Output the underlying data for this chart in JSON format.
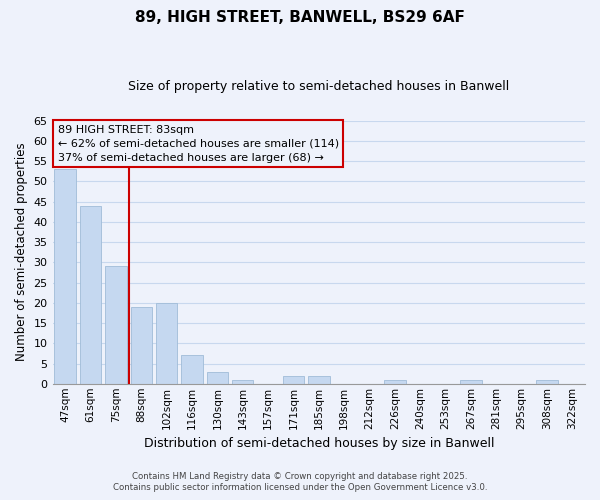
{
  "title": "89, HIGH STREET, BANWELL, BS29 6AF",
  "subtitle": "Size of property relative to semi-detached houses in Banwell",
  "xlabel": "Distribution of semi-detached houses by size in Banwell",
  "ylabel": "Number of semi-detached properties",
  "bin_labels": [
    "47sqm",
    "61sqm",
    "75sqm",
    "88sqm",
    "102sqm",
    "116sqm",
    "130sqm",
    "143sqm",
    "157sqm",
    "171sqm",
    "185sqm",
    "198sqm",
    "212sqm",
    "226sqm",
    "240sqm",
    "253sqm",
    "267sqm",
    "281sqm",
    "295sqm",
    "308sqm",
    "322sqm"
  ],
  "bar_values": [
    53,
    44,
    29,
    19,
    20,
    7,
    3,
    1,
    0,
    2,
    2,
    0,
    0,
    1,
    0,
    0,
    1,
    0,
    0,
    1,
    0
  ],
  "bar_color": "#c5d8f0",
  "bar_edge_color": "#a0bcd8",
  "grid_color": "#c8d8ee",
  "bg_color": "#eef2fb",
  "vline_x": 2.5,
  "vline_color": "#cc0000",
  "ylim": [
    0,
    65
  ],
  "yticks": [
    0,
    5,
    10,
    15,
    20,
    25,
    30,
    35,
    40,
    45,
    50,
    55,
    60,
    65
  ],
  "annotation_title": "89 HIGH STREET: 83sqm",
  "annotation_line1": "← 62% of semi-detached houses are smaller (114)",
  "annotation_line2": "37% of semi-detached houses are larger (68) →",
  "footer1": "Contains HM Land Registry data © Crown copyright and database right 2025.",
  "footer2": "Contains public sector information licensed under the Open Government Licence v3.0."
}
